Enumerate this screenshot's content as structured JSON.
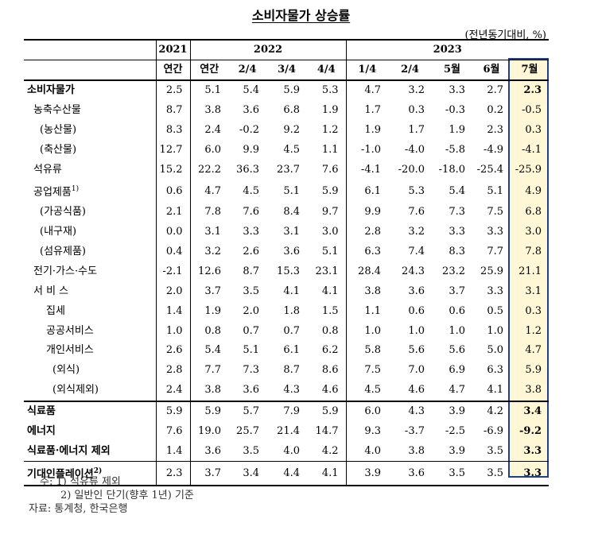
{
  "title": "소비자물가 상승률",
  "unit": "(전년동기대비, %)",
  "header": {
    "years": [
      "2021",
      "2022",
      "2023"
    ],
    "periods": [
      "연간",
      "연간",
      "2/4",
      "3/4",
      "4/4",
      "1/4",
      "2/4",
      "5월",
      "6월",
      "7월"
    ]
  },
  "rows": [
    {
      "label": "소비자물가",
      "values": [
        "2.5",
        "5.1",
        "5.4",
        "5.9",
        "5.3",
        "4.7",
        "3.2",
        "3.3",
        "2.7",
        "2.3"
      ]
    },
    {
      "label": "농축수산물",
      "values": [
        "8.7",
        "3.8",
        "3.6",
        "6.8",
        "1.9",
        "1.7",
        "0.3",
        "-0.3",
        "0.2",
        "-0.5"
      ]
    },
    {
      "label": "(농산물)",
      "values": [
        "8.3",
        "2.4",
        "-0.2",
        "9.2",
        "1.2",
        "1.9",
        "1.7",
        "1.9",
        "2.3",
        "0.3"
      ]
    },
    {
      "label": "(축산물)",
      "values": [
        "12.7",
        "6.0",
        "9.9",
        "4.5",
        "1.1",
        "-1.0",
        "-4.0",
        "-5.8",
        "-4.9",
        "-4.1"
      ]
    },
    {
      "label": "석유류",
      "values": [
        "15.2",
        "22.2",
        "36.3",
        "23.7",
        "7.6",
        "-4.1",
        "-20.0",
        "-18.0",
        "-25.4",
        "-25.9"
      ]
    },
    {
      "label": "공업제품",
      "sup": "1)",
      "values": [
        "0.6",
        "4.7",
        "4.5",
        "5.1",
        "5.9",
        "6.1",
        "5.3",
        "5.4",
        "5.1",
        "4.9"
      ]
    },
    {
      "label": "(가공식품)",
      "values": [
        "2.1",
        "7.8",
        "7.6",
        "8.4",
        "9.7",
        "9.9",
        "7.6",
        "7.3",
        "7.5",
        "6.8"
      ]
    },
    {
      "label": "(내구재)",
      "values": [
        "0.0",
        "3.1",
        "3.3",
        "3.1",
        "3.0",
        "2.8",
        "3.2",
        "3.3",
        "3.3",
        "3.0"
      ]
    },
    {
      "label": "(섬유제품)",
      "values": [
        "0.4",
        "3.2",
        "2.6",
        "3.6",
        "5.1",
        "6.3",
        "7.4",
        "8.3",
        "7.7",
        "7.8"
      ]
    },
    {
      "label": "전기·가스·수도",
      "values": [
        "-2.1",
        "12.6",
        "8.7",
        "15.3",
        "23.1",
        "28.4",
        "24.3",
        "23.2",
        "25.9",
        "21.1"
      ]
    },
    {
      "label": "서 비 스",
      "values": [
        "2.0",
        "3.7",
        "3.5",
        "4.1",
        "4.1",
        "3.8",
        "3.6",
        "3.7",
        "3.3",
        "3.1"
      ]
    },
    {
      "label": "집세",
      "values": [
        "1.4",
        "1.9",
        "2.0",
        "1.8",
        "1.5",
        "1.1",
        "0.6",
        "0.6",
        "0.5",
        "0.3"
      ]
    },
    {
      "label": "공공서비스",
      "values": [
        "1.0",
        "0.8",
        "0.7",
        "0.7",
        "0.8",
        "1.0",
        "1.0",
        "1.0",
        "1.0",
        "1.2"
      ]
    },
    {
      "label": "개인서비스",
      "values": [
        "2.6",
        "5.4",
        "5.1",
        "6.1",
        "6.2",
        "5.8",
        "5.6",
        "5.6",
        "5.0",
        "4.7"
      ]
    },
    {
      "label": "(외식)",
      "values": [
        "2.8",
        "7.7",
        "7.3",
        "8.7",
        "8.6",
        "7.5",
        "7.0",
        "6.9",
        "6.3",
        "5.9"
      ]
    },
    {
      "label": "(외식제외)",
      "values": [
        "2.4",
        "3.8",
        "3.6",
        "4.3",
        "4.6",
        "4.5",
        "4.6",
        "4.7",
        "4.1",
        "3.8"
      ]
    },
    {
      "label": "식료품",
      "values": [
        "5.9",
        "5.9",
        "5.7",
        "7.9",
        "5.9",
        "6.0",
        "4.3",
        "3.9",
        "4.2",
        "3.4"
      ]
    },
    {
      "label": "에너지",
      "values": [
        "7.6",
        "19.0",
        "25.7",
        "21.4",
        "14.7",
        "9.3",
        "-3.7",
        "-2.5",
        "-6.9",
        "-9.2"
      ]
    },
    {
      "label": "식료품·에너지 제외",
      "values": [
        "1.4",
        "3.6",
        "3.5",
        "4.0",
        "4.2",
        "4.0",
        "3.8",
        "3.9",
        "3.5",
        "3.3"
      ]
    },
    {
      "label": "기대인플레이션",
      "sup": "2)",
      "values": [
        "2.3",
        "3.7",
        "3.4",
        "4.4",
        "4.1",
        "3.9",
        "3.6",
        "3.5",
        "3.5",
        "3.3"
      ]
    }
  ],
  "notes": [
    "주: 1) 석유류 제외",
    "2) 일반인 단기(향후 1년) 기준",
    "자료: 통계청, 한국은행"
  ],
  "colors": {
    "highlight_border": "#1f3e8c",
    "highlight_fill": "#fff7d6"
  }
}
